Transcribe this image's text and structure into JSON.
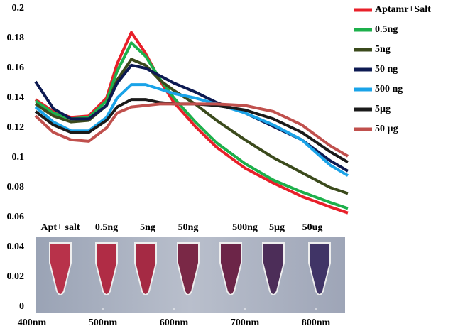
{
  "chart_data": {
    "type": "line",
    "x": [
      405,
      430,
      455,
      480,
      505,
      520,
      540,
      560,
      580,
      600,
      630,
      660,
      700,
      740,
      780,
      820,
      845
    ],
    "xlim": [
      400,
      850
    ],
    "xticks": [
      {
        "value": 400,
        "label": "400nm"
      },
      {
        "value": 500,
        "label": "500nm"
      },
      {
        "value": 600,
        "label": "600nm"
      },
      {
        "value": 700,
        "label": "700nm"
      },
      {
        "value": 800,
        "label": "800nm"
      }
    ],
    "ylim": [
      0,
      0.2
    ],
    "yticks": [
      0,
      0.02,
      0.04,
      0.06,
      0.08,
      0.1,
      0.12,
      0.14,
      0.16,
      0.18,
      0.2
    ],
    "legend": "right",
    "series": [
      {
        "name": "Aptamr+Salt",
        "color": "#e8202a",
        "values": [
          0.139,
          0.131,
          0.127,
          0.128,
          0.14,
          0.163,
          0.184,
          0.17,
          0.152,
          0.137,
          0.121,
          0.107,
          0.093,
          0.083,
          0.074,
          0.067,
          0.063
        ]
      },
      {
        "name": "0.5ng",
        "color": "#1db04b",
        "values": [
          0.138,
          0.13,
          0.126,
          0.127,
          0.138,
          0.158,
          0.177,
          0.168,
          0.153,
          0.14,
          0.124,
          0.11,
          0.096,
          0.085,
          0.077,
          0.07,
          0.066
        ]
      },
      {
        "name": "5ng",
        "color": "#3b4a1c",
        "values": [
          0.136,
          0.128,
          0.124,
          0.125,
          0.135,
          0.152,
          0.166,
          0.162,
          0.152,
          0.145,
          0.136,
          0.125,
          0.112,
          0.1,
          0.09,
          0.08,
          0.076
        ]
      },
      {
        "name": "50 ng",
        "color": "#0d1a52",
        "values": [
          0.151,
          0.133,
          0.126,
          0.126,
          0.135,
          0.15,
          0.162,
          0.16,
          0.155,
          0.15,
          0.144,
          0.137,
          0.13,
          0.121,
          0.112,
          0.098,
          0.091
        ]
      },
      {
        "name": "500 ng",
        "color": "#1aa3e8",
        "values": [
          0.134,
          0.124,
          0.118,
          0.118,
          0.127,
          0.14,
          0.149,
          0.149,
          0.146,
          0.143,
          0.14,
          0.136,
          0.13,
          0.122,
          0.112,
          0.095,
          0.088
        ]
      },
      {
        "name": "5µg",
        "color": "#1a1a1a",
        "values": [
          0.131,
          0.122,
          0.117,
          0.117,
          0.125,
          0.134,
          0.139,
          0.139,
          0.137,
          0.136,
          0.136,
          0.135,
          0.132,
          0.126,
          0.117,
          0.104,
          0.097
        ]
      },
      {
        "name": "50 µg",
        "color": "#c0504d",
        "values": [
          0.128,
          0.117,
          0.112,
          0.111,
          0.12,
          0.13,
          0.134,
          0.135,
          0.136,
          0.136,
          0.136,
          0.136,
          0.135,
          0.131,
          0.122,
          0.108,
          0.101
        ]
      }
    ],
    "annotations": [
      "Apt+ salt",
      "0.5ng",
      "5ng",
      "50ng",
      "500ng",
      "5µg",
      "50ug"
    ]
  }
}
